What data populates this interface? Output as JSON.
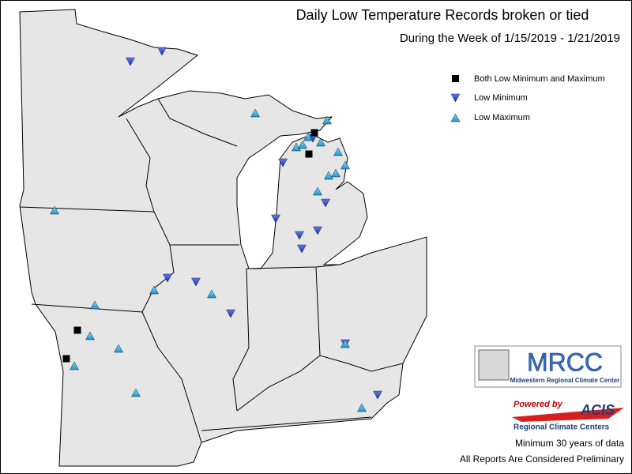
{
  "header": {
    "title": "Daily Low Temperature Records broken or tied",
    "subtitle": "During the Week of 1/15/2019 - 1/21/2019"
  },
  "legend": [
    "Both Low Minimum and Maximum",
    "Low Minimum",
    "Low Maximum"
  ],
  "logos": {
    "mrcc": "MRCC",
    "mrcc_full": "Midwestern Regional Climate Center",
    "powered_by": "Powered by",
    "acis": "ACIS",
    "acis_full": "Regional Climate Centers"
  },
  "footer": [
    "Minimum 30 years of data",
    "All Reports Are Considered Preliminary"
  ]
}
